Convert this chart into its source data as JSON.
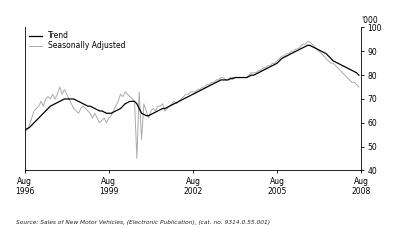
{
  "ylabel_right": "'000",
  "ylim": [
    40,
    100
  ],
  "yticks": [
    40,
    50,
    60,
    70,
    80,
    90,
    100
  ],
  "source_text": "Source: Sales of New Motor Vehicles, (Electronic Publication), (cat. no. 9314.0.55.001)",
  "legend_entries": [
    "Trend",
    "Seasonally Adjusted"
  ],
  "trend_color": "#000000",
  "seasonal_color": "#aaaaaa",
  "background_color": "#ffffff",
  "xtick_labels": [
    "Aug\n1996",
    "Aug\n1999",
    "Aug\n2002",
    "Aug\n2005",
    "Aug\n2008"
  ],
  "xtick_positions": [
    0,
    36,
    72,
    108,
    144
  ],
  "trend": [
    57,
    57.5,
    58,
    59,
    60,
    61,
    62,
    63,
    64,
    65,
    66,
    67,
    67.5,
    68,
    68.5,
    69,
    69.5,
    70,
    70,
    70,
    70,
    70,
    69.5,
    69,
    68.5,
    68,
    67.5,
    67,
    67,
    66.5,
    66,
    65.5,
    65,
    65,
    64.5,
    64,
    64,
    64,
    64.5,
    65,
    65.5,
    66,
    67,
    68,
    68.5,
    69,
    69,
    69,
    68,
    66,
    64,
    63.5,
    63,
    63,
    63.5,
    64,
    64.5,
    65,
    65.5,
    66,
    66,
    66.5,
    67,
    67.5,
    68,
    68.5,
    69,
    69.5,
    70,
    70.5,
    71,
    71.5,
    72,
    72.5,
    73,
    73.5,
    74,
    74.5,
    75,
    75.5,
    76,
    76.5,
    77,
    77.5,
    78,
    78,
    78,
    78,
    78.5,
    78.5,
    79,
    79,
    79,
    79,
    79,
    79,
    79.5,
    80,
    80,
    80.5,
    81,
    81.5,
    82,
    82.5,
    83,
    83.5,
    84,
    84.5,
    85,
    86,
    87,
    87.5,
    88,
    88.5,
    89,
    89.5,
    90,
    90.5,
    91,
    91.5,
    92,
    92.5,
    92.5,
    92,
    91.5,
    91,
    90.5,
    90,
    89.5,
    89,
    88,
    87,
    86,
    85.5,
    85,
    84.5,
    84,
    83.5,
    83,
    82.5,
    82,
    81.5,
    81,
    80
  ],
  "seasonal": [
    56,
    57,
    59,
    62,
    65,
    66,
    67,
    69,
    67,
    70,
    71,
    70,
    72,
    70,
    72,
    75,
    72,
    74,
    72,
    70,
    68,
    66,
    65,
    64,
    66,
    67,
    66,
    65,
    64,
    62,
    64,
    62,
    60,
    61,
    62,
    60,
    62,
    63,
    65,
    67,
    69,
    72,
    71,
    73,
    72,
    71,
    70,
    69,
    45,
    73,
    53,
    68,
    65,
    62,
    65,
    66,
    65,
    67,
    67,
    68,
    65,
    66,
    67,
    68,
    69,
    68,
    69,
    70,
    71,
    72,
    72,
    73,
    73,
    73,
    74,
    74,
    75,
    75,
    76,
    76,
    77,
    77,
    78,
    78,
    79,
    79,
    78,
    78,
    79,
    79,
    79,
    79,
    79,
    79,
    79,
    79,
    80,
    81,
    81,
    81,
    82,
    82,
    83,
    83,
    84,
    84,
    85,
    85,
    86,
    87,
    88,
    88,
    89,
    89,
    90,
    90,
    91,
    91,
    92,
    93,
    93,
    94,
    94,
    93,
    92,
    91,
    90,
    89,
    88,
    87,
    86,
    85,
    85,
    84,
    83,
    82,
    81,
    80,
    79,
    78,
    77,
    77,
    76,
    75
  ]
}
